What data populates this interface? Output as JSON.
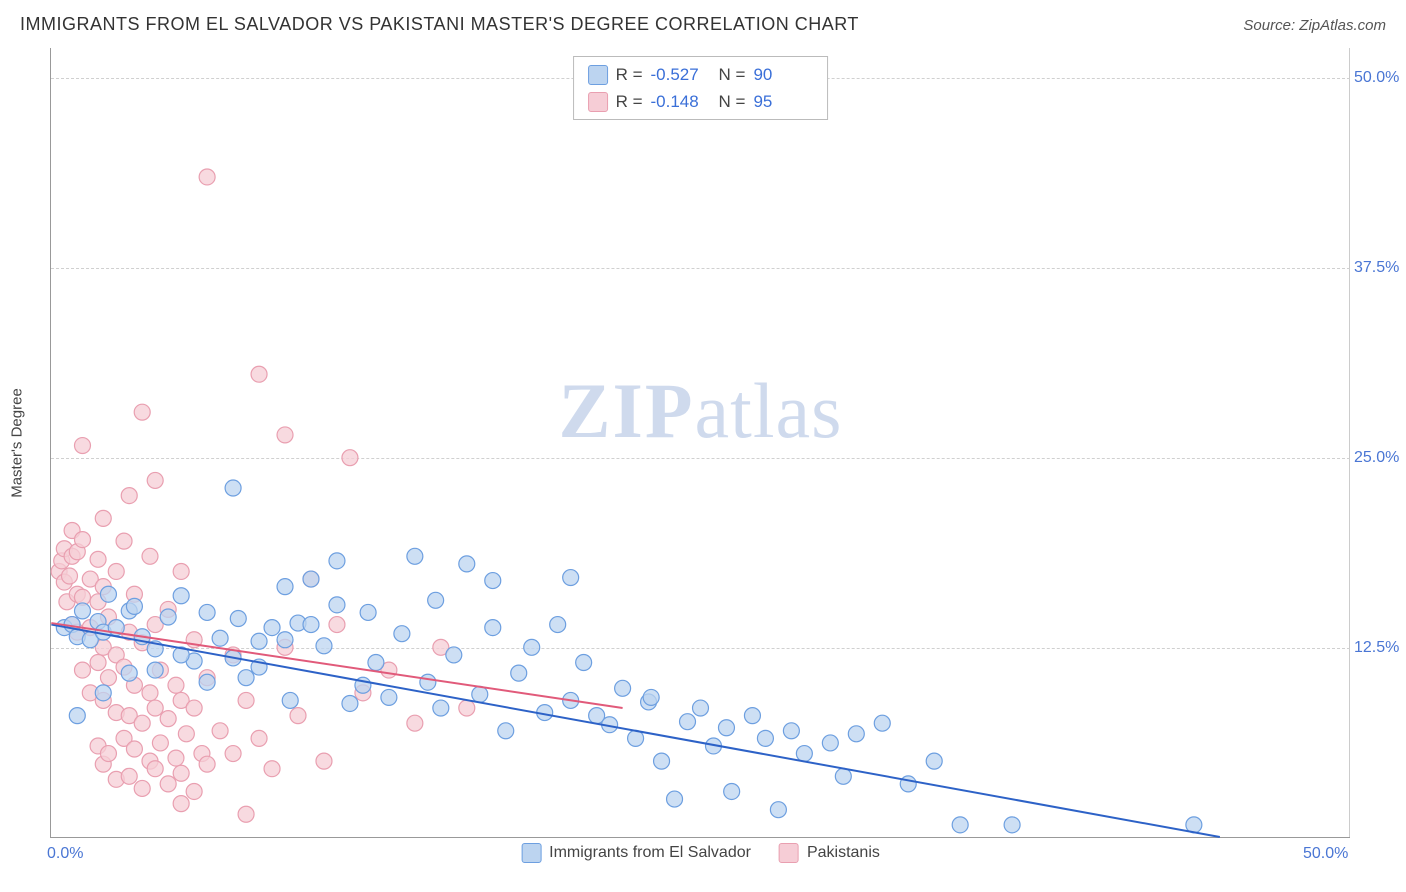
{
  "title": "IMMIGRANTS FROM EL SALVADOR VS PAKISTANI MASTER'S DEGREE CORRELATION CHART",
  "source_prefix": "Source: ",
  "source_name": "ZipAtlas.com",
  "watermark_bold": "ZIP",
  "watermark_light": "atlas",
  "y_axis_title": "Master's Degree",
  "chart": {
    "type": "scatter",
    "xlim": [
      0,
      50
    ],
    "ylim": [
      0,
      52
    ],
    "x_ticks": [
      {
        "value": 0,
        "label": "0.0%"
      },
      {
        "value": 50,
        "label": "50.0%"
      }
    ],
    "y_ticks": [
      {
        "value": 12.5,
        "label": "12.5%"
      },
      {
        "value": 25.0,
        "label": "25.0%"
      },
      {
        "value": 37.5,
        "label": "37.5%"
      },
      {
        "value": 50.0,
        "label": "50.0%"
      }
    ],
    "grid_color": "#d0d0d0",
    "background_color": "#ffffff",
    "marker_radius": 8,
    "marker_stroke_width": 1.2,
    "trend_line_width": 2,
    "series": [
      {
        "key": "salvador",
        "label": "Immigrants from El Salvador",
        "fill": "#bcd4f0",
        "stroke": "#6d9fe0",
        "swatch_fill": "#bcd4f0",
        "swatch_stroke": "#6d9fe0",
        "r_label": "R =",
        "r_value": "-0.527",
        "n_label": "N =",
        "n_value": "90",
        "trend": {
          "x1": 0,
          "y1": 14.0,
          "x2": 45,
          "y2": 0.0,
          "color": "#2d62c7"
        },
        "points": [
          [
            0.5,
            13.8
          ],
          [
            0.8,
            14.0
          ],
          [
            1.0,
            13.2
          ],
          [
            1.2,
            14.9
          ],
          [
            1.5,
            13.0
          ],
          [
            1.8,
            14.2
          ],
          [
            2.0,
            13.5
          ],
          [
            2.5,
            13.8
          ],
          [
            3.0,
            14.9
          ],
          [
            3.5,
            13.2
          ],
          [
            4.0,
            12.4
          ],
          [
            4.5,
            14.5
          ],
          [
            5.0,
            15.9
          ],
          [
            5.5,
            11.6
          ],
          [
            6.0,
            14.8
          ],
          [
            6.5,
            13.1
          ],
          [
            7.0,
            23.0
          ],
          [
            7.2,
            14.4
          ],
          [
            7.5,
            10.5
          ],
          [
            8.0,
            11.2
          ],
          [
            8.5,
            13.8
          ],
          [
            9.0,
            16.5
          ],
          [
            9.2,
            9.0
          ],
          [
            9.5,
            14.1
          ],
          [
            10.0,
            17.0
          ],
          [
            10.5,
            12.6
          ],
          [
            11.0,
            15.3
          ],
          [
            11.0,
            18.2
          ],
          [
            11.5,
            8.8
          ],
          [
            12.0,
            10.0
          ],
          [
            12.2,
            14.8
          ],
          [
            12.5,
            11.5
          ],
          [
            13.0,
            9.2
          ],
          [
            13.5,
            13.4
          ],
          [
            14.0,
            18.5
          ],
          [
            14.5,
            10.2
          ],
          [
            14.8,
            15.6
          ],
          [
            15.0,
            8.5
          ],
          [
            15.5,
            12.0
          ],
          [
            16.0,
            18.0
          ],
          [
            16.5,
            9.4
          ],
          [
            17.0,
            13.8
          ],
          [
            17.0,
            16.9
          ],
          [
            17.5,
            7.0
          ],
          [
            18.0,
            10.8
          ],
          [
            18.5,
            12.5
          ],
          [
            19.0,
            8.2
          ],
          [
            19.5,
            14.0
          ],
          [
            20.0,
            9.0
          ],
          [
            20.0,
            17.1
          ],
          [
            20.5,
            11.5
          ],
          [
            21.0,
            8.0
          ],
          [
            21.5,
            7.4
          ],
          [
            22.0,
            9.8
          ],
          [
            22.5,
            6.5
          ],
          [
            23.0,
            8.9
          ],
          [
            23.1,
            9.2
          ],
          [
            23.5,
            5.0
          ],
          [
            24.0,
            2.5
          ],
          [
            24.5,
            7.6
          ],
          [
            25.0,
            8.5
          ],
          [
            25.5,
            6.0
          ],
          [
            26.0,
            7.2
          ],
          [
            26.2,
            3.0
          ],
          [
            27.0,
            8.0
          ],
          [
            27.5,
            6.5
          ],
          [
            28.0,
            1.8
          ],
          [
            28.5,
            7.0
          ],
          [
            29.0,
            5.5
          ],
          [
            30.0,
            6.2
          ],
          [
            30.5,
            4.0
          ],
          [
            31.0,
            6.8
          ],
          [
            32.0,
            7.5
          ],
          [
            33.0,
            3.5
          ],
          [
            34.0,
            5.0
          ],
          [
            35.0,
            0.8
          ],
          [
            37.0,
            0.8
          ],
          [
            44.0,
            0.8
          ],
          [
            1.0,
            8.0
          ],
          [
            2.0,
            9.5
          ],
          [
            3.0,
            10.8
          ],
          [
            4.0,
            11.0
          ],
          [
            5.0,
            12.0
          ],
          [
            6.0,
            10.2
          ],
          [
            7.0,
            11.8
          ],
          [
            8.0,
            12.9
          ],
          [
            9.0,
            13.0
          ],
          [
            10.0,
            14.0
          ],
          [
            2.2,
            16.0
          ],
          [
            3.2,
            15.2
          ]
        ]
      },
      {
        "key": "pakistani",
        "label": "Pakistanis",
        "fill": "#f6cdd6",
        "stroke": "#e99fb0",
        "swatch_fill": "#f6cdd6",
        "swatch_stroke": "#e99fb0",
        "r_label": "R =",
        "r_value": "-0.148",
        "n_label": "N =",
        "n_value": "95",
        "trend": {
          "x1": 0,
          "y1": 14.1,
          "x2": 22,
          "y2": 8.5,
          "color": "#e15a7a"
        },
        "points": [
          [
            0.3,
            17.5
          ],
          [
            0.4,
            18.2
          ],
          [
            0.5,
            16.8
          ],
          [
            0.5,
            19.0
          ],
          [
            0.6,
            15.5
          ],
          [
            0.7,
            17.2
          ],
          [
            0.8,
            14.0
          ],
          [
            0.8,
            18.5
          ],
          [
            0.8,
            20.2
          ],
          [
            1.0,
            13.5
          ],
          [
            1.0,
            16.0
          ],
          [
            1.0,
            18.8
          ],
          [
            1.2,
            11.0
          ],
          [
            1.2,
            15.8
          ],
          [
            1.2,
            19.6
          ],
          [
            1.2,
            25.8
          ],
          [
            1.5,
            9.5
          ],
          [
            1.5,
            13.8
          ],
          [
            1.5,
            17.0
          ],
          [
            1.8,
            6.0
          ],
          [
            1.8,
            11.5
          ],
          [
            1.8,
            15.5
          ],
          [
            1.8,
            18.3
          ],
          [
            2.0,
            4.8
          ],
          [
            2.0,
            9.0
          ],
          [
            2.0,
            12.5
          ],
          [
            2.0,
            16.5
          ],
          [
            2.0,
            21.0
          ],
          [
            2.2,
            5.5
          ],
          [
            2.2,
            10.5
          ],
          [
            2.2,
            14.5
          ],
          [
            2.5,
            3.8
          ],
          [
            2.5,
            8.2
          ],
          [
            2.5,
            12.0
          ],
          [
            2.5,
            17.5
          ],
          [
            2.8,
            6.5
          ],
          [
            2.8,
            11.2
          ],
          [
            2.8,
            19.5
          ],
          [
            3.0,
            4.0
          ],
          [
            3.0,
            8.0
          ],
          [
            3.0,
            13.5
          ],
          [
            3.0,
            22.5
          ],
          [
            3.2,
            5.8
          ],
          [
            3.2,
            10.0
          ],
          [
            3.2,
            16.0
          ],
          [
            3.5,
            3.2
          ],
          [
            3.5,
            7.5
          ],
          [
            3.5,
            12.8
          ],
          [
            3.5,
            28.0
          ],
          [
            3.8,
            5.0
          ],
          [
            3.8,
            9.5
          ],
          [
            3.8,
            18.5
          ],
          [
            4.0,
            4.5
          ],
          [
            4.0,
            8.5
          ],
          [
            4.0,
            14.0
          ],
          [
            4.0,
            23.5
          ],
          [
            4.2,
            6.2
          ],
          [
            4.2,
            11.0
          ],
          [
            4.5,
            3.5
          ],
          [
            4.5,
            7.8
          ],
          [
            4.5,
            15.0
          ],
          [
            4.8,
            5.2
          ],
          [
            4.8,
            10.0
          ],
          [
            5.0,
            4.2
          ],
          [
            5.0,
            9.0
          ],
          [
            5.0,
            17.5
          ],
          [
            5.2,
            6.8
          ],
          [
            5.5,
            3.0
          ],
          [
            5.5,
            8.5
          ],
          [
            5.5,
            13.0
          ],
          [
            5.8,
            5.5
          ],
          [
            6.0,
            4.8
          ],
          [
            6.0,
            10.5
          ],
          [
            6.0,
            43.5
          ],
          [
            6.5,
            7.0
          ],
          [
            7.0,
            5.5
          ],
          [
            7.0,
            12.0
          ],
          [
            7.5,
            9.0
          ],
          [
            8.0,
            6.5
          ],
          [
            8.0,
            30.5
          ],
          [
            8.5,
            4.5
          ],
          [
            9.0,
            12.5
          ],
          [
            9.0,
            26.5
          ],
          [
            9.5,
            8.0
          ],
          [
            10.0,
            17.0
          ],
          [
            10.5,
            5.0
          ],
          [
            11.0,
            14.0
          ],
          [
            11.5,
            25.0
          ],
          [
            12.0,
            9.5
          ],
          [
            13.0,
            11.0
          ],
          [
            14.0,
            7.5
          ],
          [
            15.0,
            12.5
          ],
          [
            16.0,
            8.5
          ],
          [
            7.5,
            1.5
          ],
          [
            5.0,
            2.2
          ]
        ]
      }
    ]
  }
}
